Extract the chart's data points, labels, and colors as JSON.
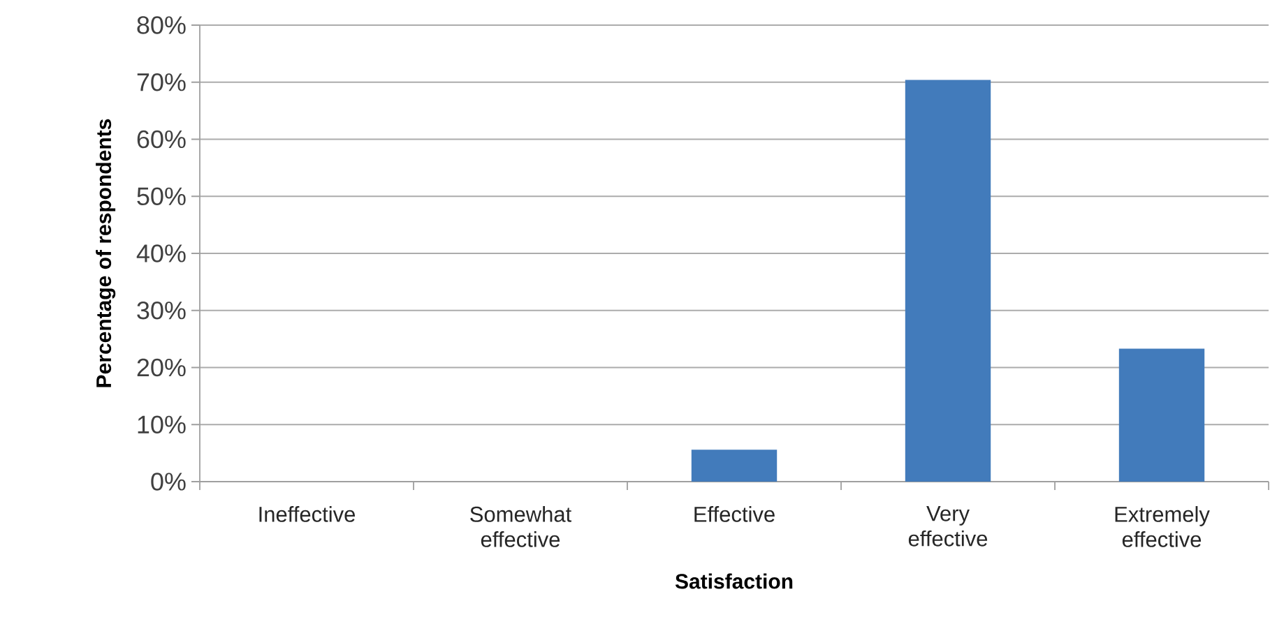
{
  "chart_data": {
    "type": "bar",
    "xlabel": "Satisfaction",
    "ylabel": "Percentage of respondents",
    "categories": [
      "Ineffective",
      "Somewhat effective",
      "Effective",
      "Very effective",
      "Extremely effective"
    ],
    "values": [
      0,
      0,
      5.6,
      70.4,
      23.3
    ],
    "color": "#427bbb",
    "ylim": [
      0,
      80
    ],
    "yticks": [
      {
        "value": 0,
        "label": "0%"
      },
      {
        "value": 10,
        "label": "10%"
      },
      {
        "value": 20,
        "label": "20%"
      },
      {
        "value": 30,
        "label": "30%"
      },
      {
        "value": 40,
        "label": "40%"
      },
      {
        "value": 50,
        "label": "50%"
      },
      {
        "value": 60,
        "label": "60%"
      },
      {
        "value": 70,
        "label": "70%"
      },
      {
        "value": 80,
        "label": "80%"
      }
    ],
    "grid": "y"
  }
}
